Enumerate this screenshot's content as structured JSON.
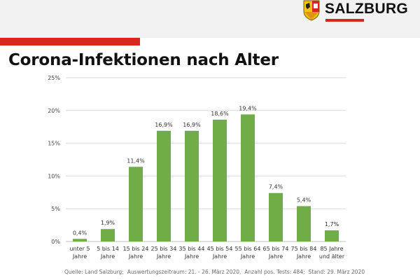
{
  "header": {
    "brand_name": "SALZBURG",
    "logo_icon": "salzburg-coat-of-arms-icon",
    "colors": {
      "accent_red": "#d7261e",
      "band": "#f2f2f2"
    }
  },
  "title": "Corona-Infektionen nach Alter",
  "chart_data": {
    "type": "bar",
    "title": "Corona-Infektionen nach Alter",
    "xlabel": "",
    "ylabel": "",
    "ylim": [
      0,
      25
    ],
    "yticks": [
      0,
      5,
      10,
      15,
      20,
      25
    ],
    "ytick_labels": [
      "0%",
      "5%",
      "10%",
      "15%",
      "20%",
      "25%"
    ],
    "grid": true,
    "bar_color": "#70ad47",
    "categories": [
      [
        "unter 5",
        "Jahre"
      ],
      [
        "5 bis 14",
        "Jahre"
      ],
      [
        "15 bis 24",
        "Jahre"
      ],
      [
        "25 bis 34",
        "Jahre"
      ],
      [
        "35 bis 44",
        "Jahre"
      ],
      [
        "45 bis 54",
        "Jahre"
      ],
      [
        "55 bis 64",
        "Jahre"
      ],
      [
        "65 bis 74",
        "Jahre"
      ],
      [
        "75 bis 84",
        "Jahre"
      ],
      [
        "85 Jahre",
        "und älter"
      ]
    ],
    "values": [
      0.4,
      1.9,
      11.4,
      16.9,
      16.9,
      18.6,
      19.4,
      7.4,
      5.4,
      1.7
    ],
    "data_labels": [
      "0,4%",
      "1,9%",
      "11,4%",
      "16,9%",
      "16,9%",
      "18,6%",
      "19,4%",
      "7,4%",
      "5,4%",
      "1,7%"
    ]
  },
  "source": {
    "parts": [
      "Quelle: Land Salzburg;",
      "Auswertungszeitraum: 21. - 26. März 2020,",
      "Anzahl pos. Tests: 484;",
      "Stand: 29. März 2020"
    ]
  }
}
